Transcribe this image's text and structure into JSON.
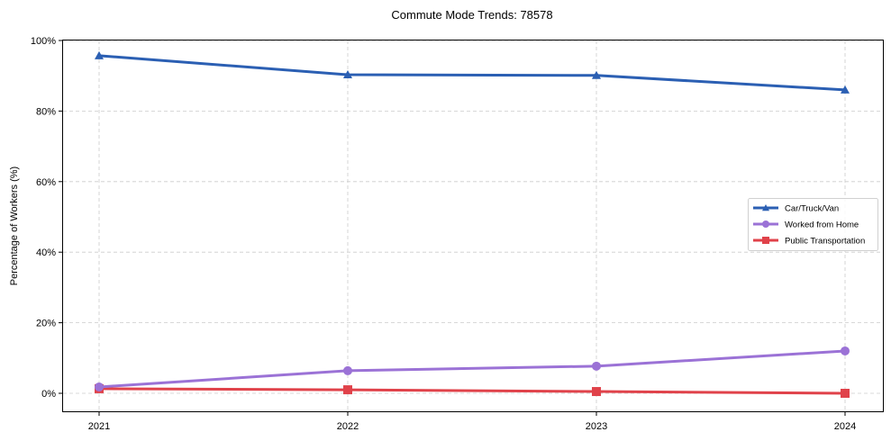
{
  "chart_data": {
    "type": "line",
    "title": "Commute Mode Trends: 78578",
    "xlabel": "",
    "ylabel": "Percentage of Workers (%)",
    "categories": [
      "2021",
      "2022",
      "2023",
      "2024"
    ],
    "ylim": [
      -5,
      100
    ],
    "yticks": [
      0,
      20,
      40,
      60,
      80,
      100
    ],
    "ytick_labels": [
      "0%",
      "20%",
      "40%",
      "60%",
      "80%",
      "100%"
    ],
    "grid": true,
    "legend_position": "center right",
    "series": [
      {
        "name": "Car/Truck/Van",
        "color": "#2b5fb3",
        "marker": "triangle",
        "values": [
          95.7,
          90.3,
          90.1,
          86.0
        ]
      },
      {
        "name": "Worked from Home",
        "color": "#9b72d6",
        "marker": "circle",
        "values": [
          1.8,
          6.4,
          7.7,
          12.0
        ]
      },
      {
        "name": "Public Transportation",
        "color": "#e0424a",
        "marker": "square",
        "values": [
          1.3,
          1.0,
          0.5,
          0.0
        ]
      }
    ]
  }
}
